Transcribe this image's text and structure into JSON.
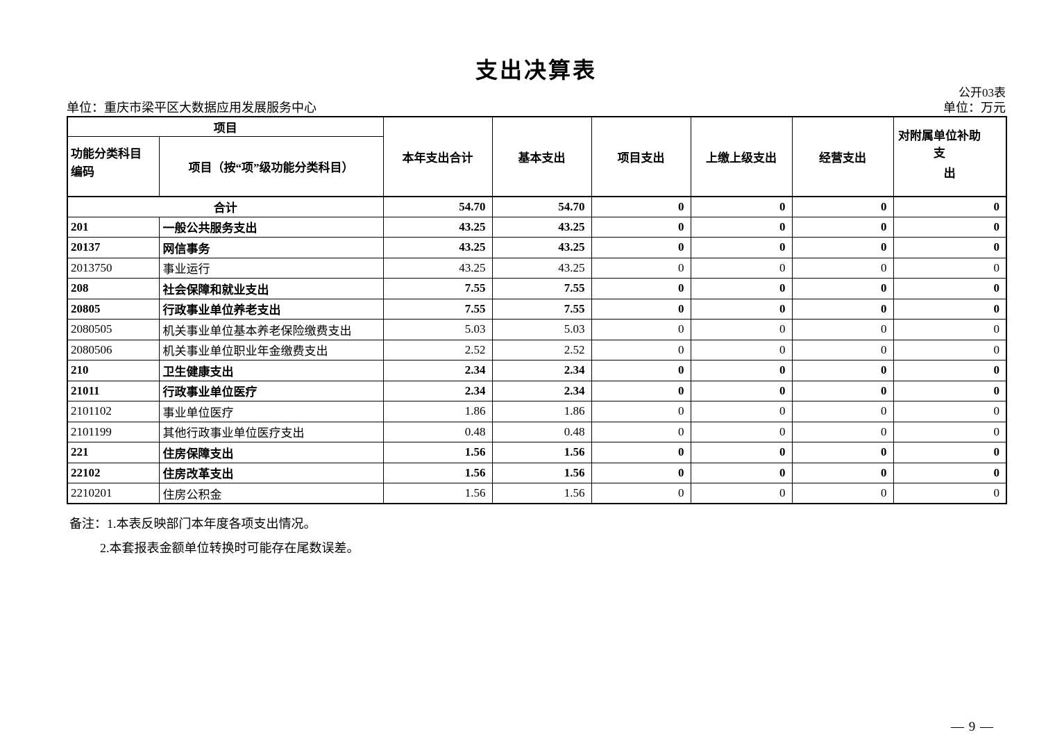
{
  "document": {
    "title": "支出决算表",
    "form_code": "公开03表",
    "org_unit": "单位：重庆市梁平区大数据应用发展服务中心",
    "currency_unit": "单位：万元",
    "page_number": "— 9 —",
    "notes": [
      "备注：1.本表反映部门本年度各项支出情况。",
      "2.本套报表金额单位转换时可能存在尾数误差。"
    ]
  },
  "table": {
    "header": {
      "group": "项目",
      "code": "功能分类科目编码",
      "item": "项目（按“项”级功能分类科目）",
      "value_columns": [
        "本年支出合计",
        "基本支出",
        "项目支出",
        "上缴上级支出",
        "经营支出"
      ],
      "subsidy_line1": "对附属单位补助支",
      "subsidy_line2": "出"
    },
    "rows": [
      {
        "merged": true,
        "code": "",
        "name": "合计",
        "bold": true,
        "values": [
          "54.70",
          "54.70",
          "0",
          "0",
          "0",
          "0"
        ]
      },
      {
        "merged": false,
        "code": "201",
        "name": "一般公共服务支出",
        "bold": true,
        "values": [
          "43.25",
          "43.25",
          "0",
          "0",
          "0",
          "0"
        ]
      },
      {
        "merged": false,
        "code": "20137",
        "name": "网信事务",
        "bold": true,
        "values": [
          "43.25",
          "43.25",
          "0",
          "0",
          "0",
          "0"
        ]
      },
      {
        "merged": false,
        "code": "2013750",
        "name": "事业运行",
        "bold": false,
        "values": [
          "43.25",
          "43.25",
          "0",
          "0",
          "0",
          "0"
        ]
      },
      {
        "merged": false,
        "code": "208",
        "name": "社会保障和就业支出",
        "bold": true,
        "values": [
          "7.55",
          "7.55",
          "0",
          "0",
          "0",
          "0"
        ]
      },
      {
        "merged": false,
        "code": "20805",
        "name": "行政事业单位养老支出",
        "bold": true,
        "values": [
          "7.55",
          "7.55",
          "0",
          "0",
          "0",
          "0"
        ]
      },
      {
        "merged": false,
        "code": "2080505",
        "name": "机关事业单位基本养老保险缴费支出",
        "bold": false,
        "values": [
          "5.03",
          "5.03",
          "0",
          "0",
          "0",
          "0"
        ]
      },
      {
        "merged": false,
        "code": "2080506",
        "name": "机关事业单位职业年金缴费支出",
        "bold": false,
        "values": [
          "2.52",
          "2.52",
          "0",
          "0",
          "0",
          "0"
        ]
      },
      {
        "merged": false,
        "code": "210",
        "name": "卫生健康支出",
        "bold": true,
        "values": [
          "2.34",
          "2.34",
          "0",
          "0",
          "0",
          "0"
        ]
      },
      {
        "merged": false,
        "code": "21011",
        "name": "行政事业单位医疗",
        "bold": true,
        "values": [
          "2.34",
          "2.34",
          "0",
          "0",
          "0",
          "0"
        ]
      },
      {
        "merged": false,
        "code": "2101102",
        "name": "事业单位医疗",
        "bold": false,
        "values": [
          "1.86",
          "1.86",
          "0",
          "0",
          "0",
          "0"
        ]
      },
      {
        "merged": false,
        "code": "2101199",
        "name": "其他行政事业单位医疗支出",
        "bold": false,
        "values": [
          "0.48",
          "0.48",
          "0",
          "0",
          "0",
          "0"
        ]
      },
      {
        "merged": false,
        "code": "221",
        "name": "住房保障支出",
        "bold": true,
        "values": [
          "1.56",
          "1.56",
          "0",
          "0",
          "0",
          "0"
        ]
      },
      {
        "merged": false,
        "code": "22102",
        "name": "住房改革支出",
        "bold": true,
        "values": [
          "1.56",
          "1.56",
          "0",
          "0",
          "0",
          "0"
        ]
      },
      {
        "merged": false,
        "code": "2210201",
        "name": "住房公积金",
        "bold": false,
        "values": [
          "1.56",
          "1.56",
          "0",
          "0",
          "0",
          "0"
        ]
      }
    ]
  }
}
